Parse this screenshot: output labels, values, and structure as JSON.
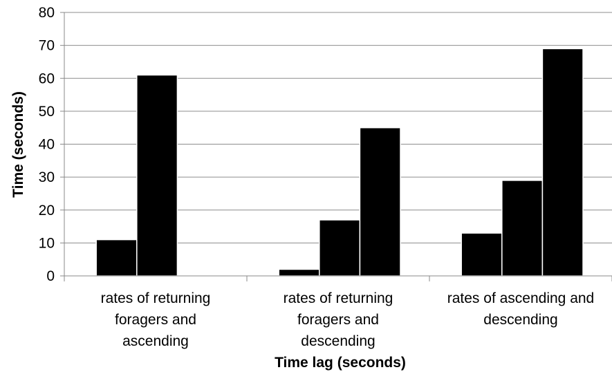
{
  "chart_data": {
    "type": "bar",
    "title": "",
    "xlabel": "Time lag (seconds)",
    "ylabel": "Time (seconds)",
    "ylim": [
      0,
      80
    ],
    "yticks": [
      0,
      10,
      20,
      30,
      40,
      50,
      60,
      70,
      80
    ],
    "grid": true,
    "legend": "none",
    "bar_color": "#000000",
    "categories": [
      [
        "rates of returning",
        "foragers and",
        "ascending"
      ],
      [
        "rates of returning",
        "foragers and",
        "descending"
      ],
      [
        "rates of ascending and",
        "descending"
      ]
    ],
    "series": [
      {
        "values": [
          11,
          2,
          13
        ]
      },
      {
        "values": [
          61,
          17,
          29
        ]
      },
      {
        "values": [
          null,
          45,
          69
        ]
      }
    ]
  }
}
